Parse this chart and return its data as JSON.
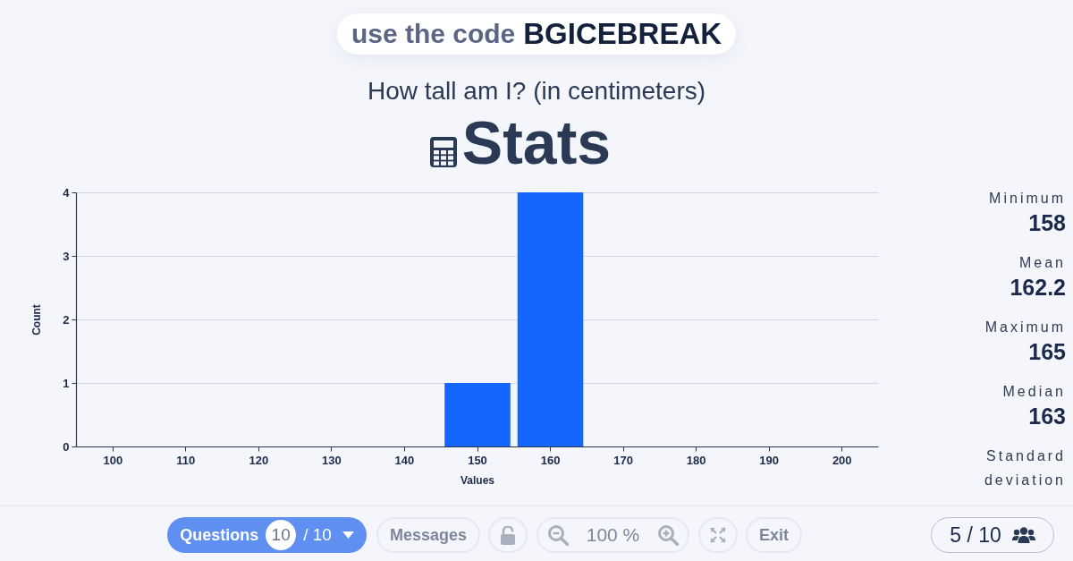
{
  "chart_data": {
    "type": "histogram",
    "title": "How tall am I? (in centimeters)",
    "subtitle": "Stats",
    "xlabel": "Values",
    "ylabel": "Count",
    "bins": [
      145,
      155,
      165
    ],
    "values": [
      1,
      4
    ],
    "color": "#1565ff",
    "xlim": [
      95,
      205
    ],
    "xticks": [
      100,
      110,
      120,
      130,
      140,
      150,
      160,
      170,
      180,
      190,
      200
    ],
    "ylim": [
      0,
      4
    ],
    "yticks": [
      0,
      1,
      2,
      3,
      4
    ],
    "grid": "y",
    "annotations": [
      "use the code BGICEBREAK",
      "Minimum",
      "158",
      "Mean",
      "162.2",
      "Maximum",
      "165",
      "Median",
      "163",
      "Standard deviation",
      "Questions",
      "10",
      "/ 10",
      "Messages",
      "100 %",
      "Exit",
      "5 / 10"
    ]
  }
}
